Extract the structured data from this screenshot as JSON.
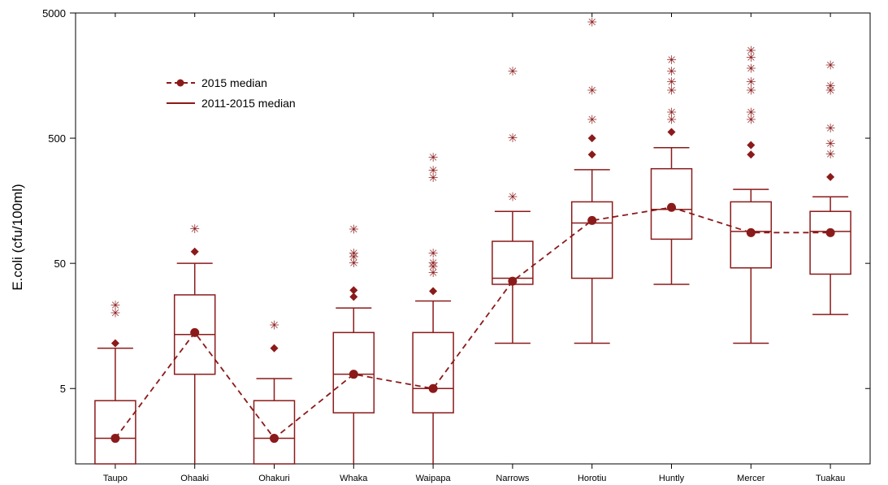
{
  "chart_data": {
    "type": "box",
    "ylabel": "E.coli (cfu/100ml)",
    "y_scale": "log",
    "ylim": [
      1.25,
      5000
    ],
    "y_ticks": [
      5,
      50,
      500,
      5000
    ],
    "y_tick_labels": [
      "5",
      "50",
      "500",
      "5000"
    ],
    "categories": [
      "Taupo",
      "Ohaaki",
      "Ohakuri",
      "Whaka",
      "Waipapa",
      "Narrows",
      "Horotiu",
      "Huntly",
      "Mercer",
      "Tuakau"
    ],
    "color": "#8B1A1A",
    "legend": {
      "items": [
        {
          "label": "2015 median",
          "style": "dashed-line-with-dot"
        },
        {
          "label": "2011-2015 median",
          "style": "solid-line"
        }
      ],
      "position": "top-left"
    },
    "boxes": [
      {
        "category": "Taupo",
        "whisker_low": 1.25,
        "q1": 1.25,
        "median": 2.0,
        "q3": 4.0,
        "whisker_high": 10.5
      },
      {
        "category": "Ohaaki",
        "whisker_low": 1.25,
        "q1": 6.5,
        "median": 13.5,
        "q3": 28.0,
        "whisker_high": 50
      },
      {
        "category": "Ohakuri",
        "whisker_low": 1.25,
        "q1": 1.25,
        "median": 2.0,
        "q3": 4.0,
        "whisker_high": 6.0
      },
      {
        "category": "Whaka",
        "whisker_low": 1.25,
        "q1": 3.2,
        "median": 6.5,
        "q3": 14.0,
        "whisker_high": 22.0
      },
      {
        "category": "Waipapa",
        "whisker_low": 1.25,
        "q1": 3.2,
        "median": 5.0,
        "q3": 14.0,
        "whisker_high": 25.0
      },
      {
        "category": "Narrows",
        "whisker_low": 11.5,
        "q1": 34.0,
        "median": 38.0,
        "q3": 75.0,
        "whisker_high": 130
      },
      {
        "category": "Horotiu",
        "whisker_low": 11.5,
        "q1": 38.0,
        "median": 105,
        "q3": 155,
        "whisker_high": 280
      },
      {
        "category": "Huntly",
        "whisker_low": 34.0,
        "q1": 78.0,
        "median": 135,
        "q3": 285,
        "whisker_high": 420
      },
      {
        "category": "Mercer",
        "whisker_low": 11.5,
        "q1": 46.0,
        "median": 90,
        "q3": 155,
        "whisker_high": 195
      },
      {
        "category": "Tuakau",
        "whisker_low": 19.5,
        "q1": 41.0,
        "median": 90,
        "q3": 130,
        "whisker_high": 170
      }
    ],
    "median_2015": [
      2.0,
      14.0,
      2.0,
      6.5,
      5.0,
      36.0,
      110,
      140,
      88,
      88
    ],
    "outliers_extreme": [
      {
        "category": "Taupo",
        "values": [
          20,
          23
        ]
      },
      {
        "category": "Ohaaki",
        "values": [
          94
        ]
      },
      {
        "category": "Ohakuri",
        "values": [
          16
        ]
      },
      {
        "category": "Whaka",
        "values": [
          50,
          56,
          60,
          93
        ]
      },
      {
        "category": "Waipapa",
        "values": [
          42,
          47,
          50,
          60,
          240,
          275,
          350
        ]
      },
      {
        "category": "Narrows",
        "values": [
          170,
          500,
          1700
        ]
      },
      {
        "category": "Horotiu",
        "values": [
          700,
          1200,
          4200
        ]
      },
      {
        "category": "Huntly",
        "values": [
          700,
          800,
          1200,
          1400,
          1700,
          2100
        ]
      },
      {
        "category": "Mercer",
        "values": [
          700,
          800,
          1200,
          1400,
          1800,
          2200,
          2500
        ]
      },
      {
        "category": "Tuakau",
        "values": [
          370,
          450,
          600,
          1200,
          1300,
          1900
        ]
      }
    ],
    "outliers_mild": [
      {
        "category": "Taupo",
        "values": [
          11.5
        ]
      },
      {
        "category": "Ohaaki",
        "values": [
          62
        ]
      },
      {
        "category": "Ohakuri",
        "values": [
          10.5
        ]
      },
      {
        "category": "Whaka",
        "values": [
          27,
          30.5
        ]
      },
      {
        "category": "Waipapa",
        "values": [
          30
        ]
      },
      {
        "category": "Horotiu",
        "values": [
          370,
          500
        ]
      },
      {
        "category": "Huntly",
        "values": [
          560
        ]
      },
      {
        "category": "Mercer",
        "values": [
          370,
          440
        ]
      },
      {
        "category": "Tuakau",
        "values": [
          245
        ]
      }
    ]
  }
}
